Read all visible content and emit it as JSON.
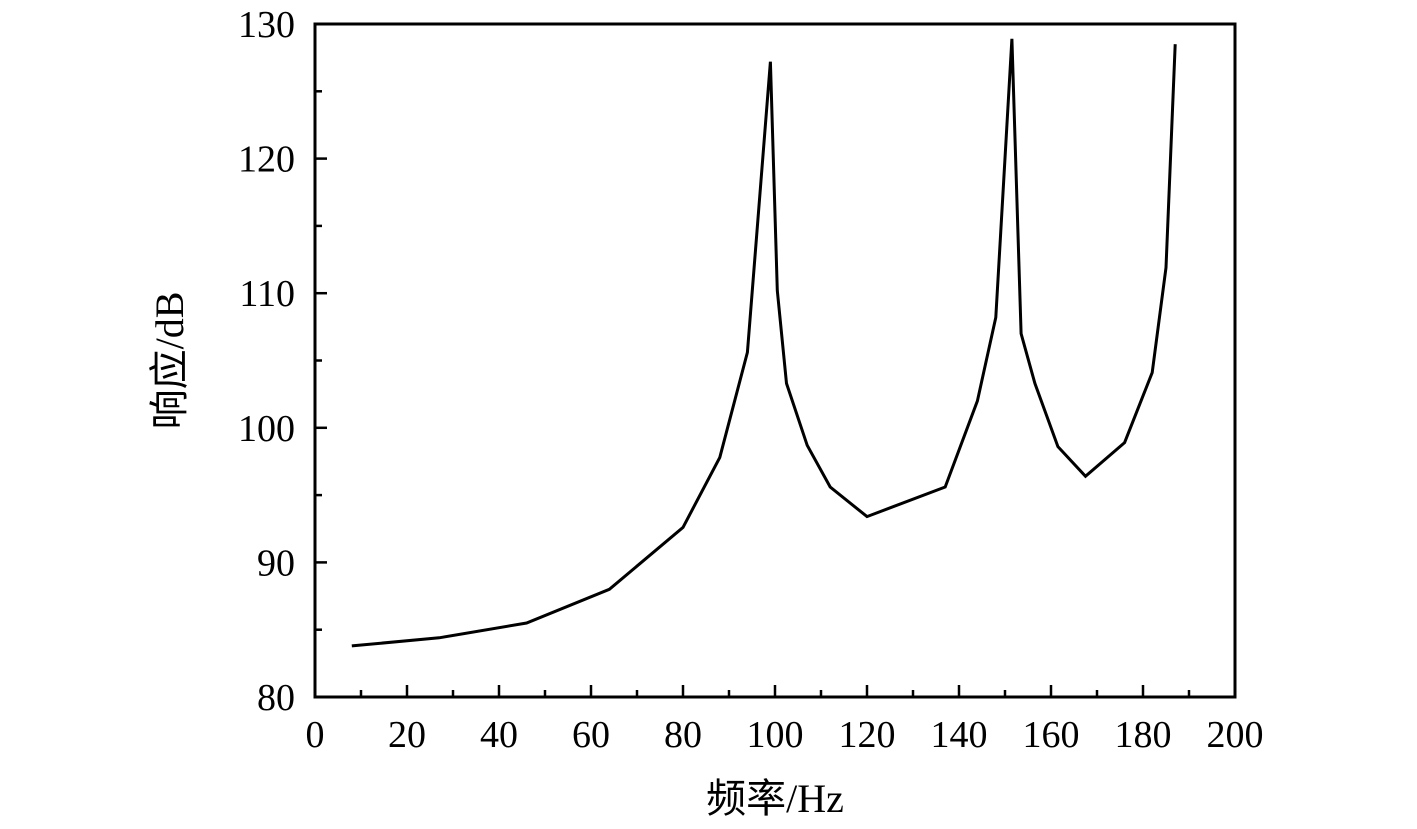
{
  "chart_data": {
    "type": "line",
    "title": "",
    "xlabel": "频率/Hz",
    "ylabel": "响应/dB",
    "xlim": [
      0,
      200
    ],
    "ylim": [
      80,
      130
    ],
    "xticks": [
      0,
      20,
      40,
      60,
      80,
      100,
      120,
      140,
      160,
      180,
      200
    ],
    "yticks": [
      80,
      90,
      100,
      110,
      120,
      130
    ],
    "xtick_labels": [
      "0",
      "20",
      "40",
      "60",
      "80",
      "100",
      "120",
      "140",
      "160",
      "180",
      "200"
    ],
    "ytick_labels": [
      "80",
      "90",
      "100",
      "110",
      "120",
      "130"
    ],
    "grid": false,
    "legend": "none",
    "series": [
      {
        "color": "#000000",
        "x": [
          8,
          27,
          46,
          64,
          80,
          88,
          94,
          99,
          100.5,
          102.5,
          107,
          112,
          120,
          137,
          144,
          148,
          151.5,
          153.5,
          156.5,
          161.5,
          167.5,
          176,
          182,
          185,
          187
        ],
        "y": [
          83.8,
          84.4,
          85.5,
          88.0,
          92.6,
          97.8,
          105.6,
          127.2,
          110.2,
          103.3,
          98.7,
          95.6,
          93.4,
          95.6,
          102.0,
          108.2,
          128.9,
          107.0,
          103.3,
          98.6,
          96.4,
          98.9,
          104.1,
          111.9,
          128.5
        ]
      }
    ]
  }
}
